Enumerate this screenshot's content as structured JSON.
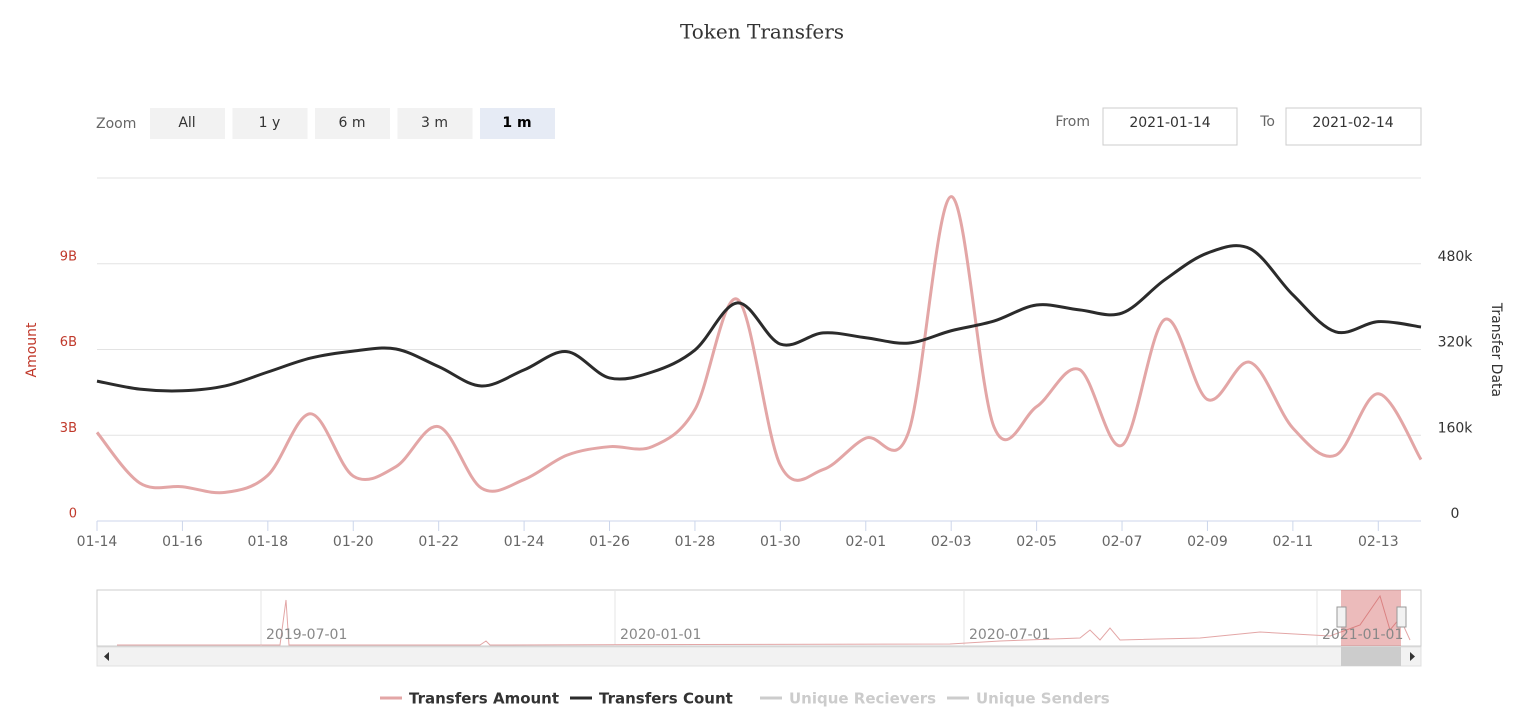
{
  "chart_data": {
    "type": "line",
    "title": "Token Transfers",
    "zoom_label": "Zoom",
    "zoom_buttons": [
      "All",
      "1 y",
      "6 m",
      "3 m",
      "1 m"
    ],
    "zoom_selected": 4,
    "from_label": "From",
    "from_value": "2021-01-14",
    "to_label": "To",
    "to_value": "2021-02-14",
    "categories": [
      "01-14",
      null,
      "01-16",
      null,
      "01-18",
      null,
      "01-20",
      null,
      "01-22",
      null,
      "01-24",
      null,
      "01-26",
      null,
      "01-28",
      null,
      "01-30",
      null,
      "02-01",
      null,
      "02-03",
      null,
      "02-05",
      null,
      "02-07",
      null,
      "02-09",
      null,
      "02-11",
      null,
      "02-13",
      null
    ],
    "y_label": "Amount",
    "y2_label": "Transfer Data",
    "ylim": [
      0,
      12000000000
    ],
    "yticks": [
      0,
      {
        "value": 3000000000,
        "label": "3B"
      },
      {
        "value": 6000000000,
        "label": "6B"
      },
      {
        "value": 9000000000,
        "label": "9B"
      }
    ],
    "y2lim": [
      0,
      640000
    ],
    "y2ticks": [
      0,
      {
        "value": 160000,
        "label": "160k"
      },
      {
        "value": 320000,
        "label": "320k"
      },
      {
        "value": 480000,
        "label": "480k"
      }
    ],
    "grid": true,
    "smooth": true,
    "series": [
      {
        "name": "Transfers Amount",
        "color": "#e3a6a6",
        "values": [
          3100000000,
          1330000000,
          1200000000,
          1000000000,
          1600000000,
          3750000000,
          1570000000,
          1900000000,
          3300000000,
          1150000000,
          1450000000,
          2300000000,
          2600000000,
          2600000000,
          3900000000,
          7750000000,
          1950000000,
          1800000000,
          2900000000,
          3100000000,
          11350000000,
          3300000000,
          4000000000,
          5300000000,
          2650000000,
          7050000000,
          4250000000,
          5550000000,
          3250000000,
          2300000000,
          4450000000,
          2150000000
        ]
      },
      {
        "name": "Transfers Count",
        "color": "#2b2b2b",
        "axis": "y2",
        "values": [
          261000,
          246000,
          243000,
          252000,
          278000,
          304000,
          317000,
          321000,
          288000,
          252000,
          282000,
          316000,
          267000,
          278000,
          319000,
          407000,
          330000,
          351000,
          342000,
          332000,
          355000,
          373000,
          403000,
          394000,
          388000,
          450000,
          500000,
          508000,
          422000,
          353000,
          372000,
          362000
        ]
      }
    ],
    "hidden_series": [
      "Unique Recievers",
      "Unique Senders"
    ],
    "navigator_labels": [
      "2019-07-01",
      "2020-01-01",
      "2020-07-01",
      "2021-01-01"
    ]
  }
}
